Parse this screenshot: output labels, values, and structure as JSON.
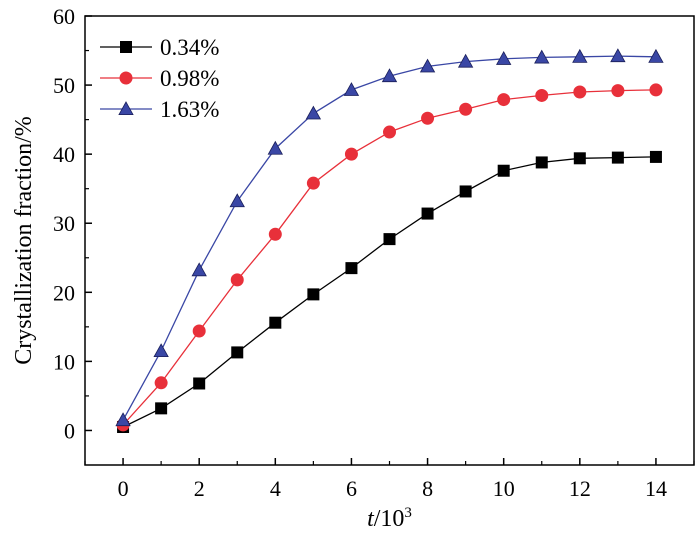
{
  "chart_data": {
    "type": "line",
    "title": "",
    "xlabel_italic": "t",
    "xlabel_rest": "/10",
    "xlabel_sup": "3",
    "ylabel": "Crystallization fraction/%",
    "xlim": [
      -1,
      15
    ],
    "ylim": [
      -5,
      60
    ],
    "xticks": [
      0,
      2,
      4,
      6,
      8,
      10,
      12,
      14
    ],
    "yticks": [
      0,
      10,
      20,
      30,
      40,
      50,
      60
    ],
    "legend_position": "top-left",
    "grid": false,
    "x": [
      0,
      1,
      2,
      3,
      4,
      5,
      6,
      7,
      8,
      9,
      10,
      11,
      12,
      13,
      14
    ],
    "series": [
      {
        "name": "0.34%",
        "marker": "square",
        "color": "#000000",
        "values": [
          0.5,
          3.2,
          6.8,
          11.3,
          15.6,
          19.7,
          23.5,
          27.7,
          31.4,
          34.6,
          37.6,
          38.8,
          39.4,
          39.5,
          39.6
        ]
      },
      {
        "name": "0.98%",
        "marker": "circle",
        "color": "#e8303a",
        "values": [
          0.8,
          6.9,
          14.4,
          21.8,
          28.4,
          35.8,
          40.0,
          43.2,
          45.2,
          46.5,
          47.9,
          48.5,
          49.0,
          49.2,
          49.3
        ]
      },
      {
        "name": "1.63%",
        "marker": "triangle",
        "color": "#3a47a5",
        "values": [
          1.5,
          11.5,
          23.2,
          33.2,
          40.8,
          45.9,
          49.3,
          51.3,
          52.7,
          53.4,
          53.8,
          54.0,
          54.1,
          54.2,
          54.1
        ]
      }
    ]
  }
}
